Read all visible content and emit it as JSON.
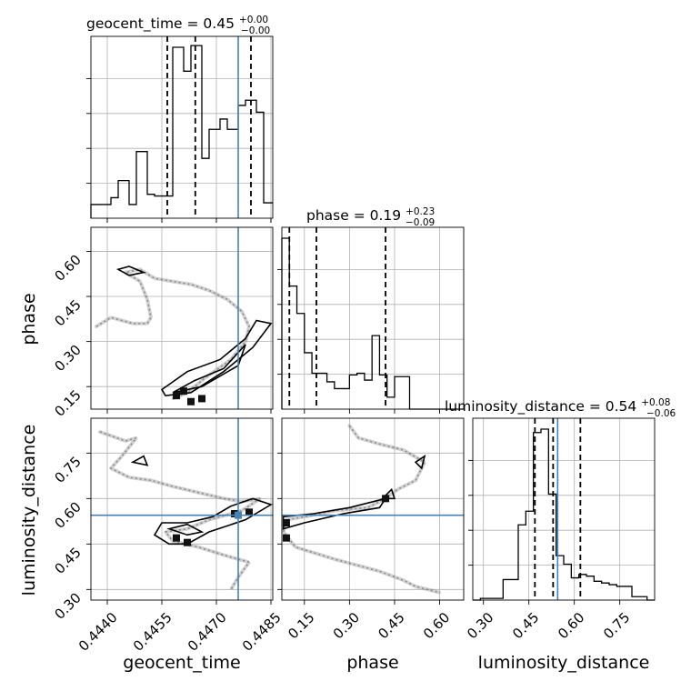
{
  "chart_data": {
    "type": "corner",
    "parameters": [
      "geocent_time",
      "phase",
      "luminosity_distance"
    ],
    "truths": {
      "geocent_time": 0.4476,
      "phase": null,
      "luminosity_distance": 0.545
    },
    "titles": [
      {
        "param": "geocent_time",
        "main": "geocent_time = 0.45",
        "plus": "+0.00",
        "minus": "−0.00"
      },
      {
        "param": "phase",
        "main": "phase = 0.19",
        "plus": "+0.23",
        "minus": "−0.09"
      },
      {
        "param": "luminosity_distance",
        "main": "luminosity_distance = 0.54",
        "plus": "+0.08",
        "minus": "−0.06"
      }
    ],
    "axis_labels": {
      "x": [
        "geocent_time",
        "phase",
        "luminosity_distance"
      ],
      "y": [
        "phase",
        "luminosity_distance"
      ]
    },
    "ranges": {
      "geocent_time": [
        0.44355,
        0.44855
      ],
      "phase": [
        0.075,
        0.68
      ],
      "luminosity_distance": [
        0.265,
        0.865
      ]
    },
    "ticks": {
      "geocent_time": [
        "0.4440",
        "0.4455",
        "0.4470",
        "0.4485"
      ],
      "phase": [
        "0.15",
        "0.30",
        "0.45",
        "0.60"
      ],
      "luminosity_distance": [
        "0.30",
        "0.45",
        "0.60",
        "0.75"
      ]
    },
    "tick_values": {
      "geocent_time": [
        0.444,
        0.4455,
        0.447,
        0.4485
      ],
      "phase": [
        0.15,
        0.3,
        0.45,
        0.6
      ],
      "luminosity_distance": [
        0.3,
        0.45,
        0.6,
        0.75
      ]
    },
    "histograms": [
      {
        "param": "geocent_time",
        "quantiles": [
          0.44565,
          0.44642,
          0.44795
        ],
        "edges": [
          0.44355,
          0.4438,
          0.4441,
          0.4443,
          0.4446,
          0.4448,
          0.4451,
          0.4453,
          0.4456,
          0.4458,
          0.4461,
          0.4463,
          0.4466,
          0.4468,
          0.4471,
          0.4473,
          0.4476,
          0.4478,
          0.4481,
          0.4483,
          0.44855
        ],
        "counts": [
          0.08,
          0.08,
          0.12,
          0.22,
          0.08,
          0.39,
          0.14,
          0.13,
          0.13,
          1.0,
          0.86,
          1.01,
          0.35,
          0.52,
          0.58,
          0.52,
          0.66,
          0.69,
          0.62,
          0.09
        ]
      },
      {
        "param": "phase",
        "quantiles": [
          0.1,
          0.19,
          0.42
        ],
        "edges": [
          0.075,
          0.1,
          0.125,
          0.15,
          0.175,
          0.2,
          0.225,
          0.25,
          0.275,
          0.3,
          0.325,
          0.35,
          0.375,
          0.4,
          0.425,
          0.45,
          0.475,
          0.5,
          0.525,
          0.55,
          0.575,
          0.6,
          0.625,
          0.65,
          0.68
        ],
        "counts": [
          1.0,
          0.72,
          0.56,
          0.33,
          0.21,
          0.21,
          0.16,
          0.12,
          0.12,
          0.2,
          0.21,
          0.17,
          0.43,
          0.2,
          0.07,
          0.19,
          0.19,
          0.0,
          0.0,
          0.0,
          0.0,
          0.0,
          0.0,
          0.0
        ]
      },
      {
        "param": "luminosity_distance",
        "quantiles": [
          0.47,
          0.53,
          0.62
        ],
        "edges": [
          0.265,
          0.29,
          0.315,
          0.34,
          0.365,
          0.39,
          0.415,
          0.44,
          0.465,
          0.49,
          0.515,
          0.54,
          0.565,
          0.59,
          0.615,
          0.64,
          0.665,
          0.69,
          0.715,
          0.74,
          0.765,
          0.79,
          0.815,
          0.84,
          0.865
        ],
        "counts": [
          0.0,
          0.01,
          0.01,
          0.01,
          0.12,
          0.12,
          0.44,
          0.52,
          0.98,
          1.0,
          0.62,
          0.26,
          0.21,
          0.13,
          0.15,
          0.14,
          0.11,
          0.1,
          0.09,
          0.08,
          0.08,
          0.02,
          0.02,
          0.0
        ]
      }
    ],
    "pairs": [
      {
        "x": "geocent_time",
        "y": "phase",
        "trace": [
          [
            0.4437,
            0.35
          ],
          [
            0.4441,
            0.38
          ],
          [
            0.4444,
            0.37
          ],
          [
            0.4447,
            0.36
          ],
          [
            0.4451,
            0.36
          ],
          [
            0.4452,
            0.38
          ],
          [
            0.4451,
            0.44
          ],
          [
            0.4449,
            0.5
          ],
          [
            0.4445,
            0.53
          ],
          [
            0.4449,
            0.54
          ],
          [
            0.4453,
            0.51
          ],
          [
            0.4458,
            0.5
          ],
          [
            0.4463,
            0.49
          ],
          [
            0.4468,
            0.47
          ],
          [
            0.4473,
            0.44
          ],
          [
            0.4477,
            0.4
          ],
          [
            0.4479,
            0.35
          ],
          [
            0.4478,
            0.3
          ],
          [
            0.4474,
            0.24
          ],
          [
            0.4467,
            0.18
          ],
          [
            0.4462,
            0.13
          ],
          [
            0.4458,
            0.11
          ]
        ],
        "contours": [
          [
            [
              0.4443,
              0.54
            ],
            [
              0.4446,
              0.55
            ],
            [
              0.445,
              0.53
            ],
            [
              0.4446,
              0.52
            ],
            [
              0.4443,
              0.54
            ]
          ],
          [
            [
              0.4455,
              0.14
            ],
            [
              0.4462,
              0.2
            ],
            [
              0.4471,
              0.24
            ],
            [
              0.4478,
              0.31
            ],
            [
              0.4481,
              0.37
            ],
            [
              0.4485,
              0.36
            ],
            [
              0.448,
              0.28
            ],
            [
              0.4472,
              0.2
            ],
            [
              0.4463,
              0.13
            ],
            [
              0.4456,
              0.12
            ],
            [
              0.4455,
              0.14
            ]
          ],
          [
            [
              0.4458,
              0.13
            ],
            [
              0.4464,
              0.17
            ],
            [
              0.4472,
              0.21
            ],
            [
              0.4478,
              0.29
            ],
            [
              0.4476,
              0.22
            ],
            [
              0.4466,
              0.15
            ],
            [
              0.4458,
              0.13
            ]
          ]
        ],
        "dense": [
          [
            0.4459,
            0.12
          ],
          [
            0.4463,
            0.1
          ],
          [
            0.4466,
            0.11
          ],
          [
            0.4461,
            0.135
          ]
        ]
      },
      {
        "x": "geocent_time",
        "y": "luminosity_distance",
        "trace": [
          [
            0.4438,
            0.82
          ],
          [
            0.4445,
            0.79
          ],
          [
            0.4448,
            0.8
          ],
          [
            0.4444,
            0.74
          ],
          [
            0.4441,
            0.7
          ],
          [
            0.4446,
            0.67
          ],
          [
            0.4452,
            0.66
          ],
          [
            0.4458,
            0.64
          ],
          [
            0.4465,
            0.62
          ],
          [
            0.4472,
            0.6
          ],
          [
            0.4477,
            0.59
          ],
          [
            0.4482,
            0.6
          ],
          [
            0.4477,
            0.56
          ],
          [
            0.4468,
            0.53
          ],
          [
            0.4462,
            0.5
          ],
          [
            0.4456,
            0.49
          ],
          [
            0.4458,
            0.46
          ],
          [
            0.4465,
            0.44
          ],
          [
            0.4473,
            0.41
          ],
          [
            0.4479,
            0.39
          ],
          [
            0.4476,
            0.34
          ],
          [
            0.4474,
            0.3
          ]
        ],
        "contours": [
          [
            [
              0.4447,
              0.72
            ],
            [
              0.445,
              0.74
            ],
            [
              0.4451,
              0.71
            ],
            [
              0.4447,
              0.72
            ]
          ],
          [
            [
              0.4455,
              0.52
            ],
            [
              0.4462,
              0.52
            ],
            [
              0.4469,
              0.54
            ],
            [
              0.4474,
              0.575
            ],
            [
              0.448,
              0.6
            ],
            [
              0.4485,
              0.58
            ],
            [
              0.4478,
              0.53
            ],
            [
              0.4468,
              0.49
            ],
            [
              0.4462,
              0.45
            ],
            [
              0.4457,
              0.45
            ],
            [
              0.4453,
              0.48
            ],
            [
              0.4455,
              0.52
            ]
          ],
          [
            [
              0.4457,
              0.5
            ],
            [
              0.4462,
              0.48
            ],
            [
              0.4466,
              0.49
            ],
            [
              0.4462,
              0.515
            ],
            [
              0.4457,
              0.5
            ]
          ]
        ],
        "dense": [
          [
            0.4459,
            0.47
          ],
          [
            0.4462,
            0.455
          ],
          [
            0.4475,
            0.55
          ],
          [
            0.4479,
            0.555
          ]
        ]
      },
      {
        "x": "phase",
        "y": "luminosity_distance",
        "trace": [
          [
            0.3,
            0.84
          ],
          [
            0.33,
            0.8
          ],
          [
            0.4,
            0.78
          ],
          [
            0.48,
            0.76
          ],
          [
            0.55,
            0.72
          ],
          [
            0.52,
            0.66
          ],
          [
            0.46,
            0.63
          ],
          [
            0.42,
            0.6
          ],
          [
            0.36,
            0.57
          ],
          [
            0.25,
            0.56
          ],
          [
            0.15,
            0.54
          ],
          [
            0.09,
            0.53
          ],
          [
            0.08,
            0.49
          ],
          [
            0.12,
            0.44
          ],
          [
            0.25,
            0.4
          ],
          [
            0.4,
            0.36
          ],
          [
            0.48,
            0.33
          ],
          [
            0.52,
            0.31
          ],
          [
            0.6,
            0.29
          ]
        ],
        "contours": [
          [
            [
              0.08,
              0.54
            ],
            [
              0.18,
              0.55
            ],
            [
              0.3,
              0.57
            ],
            [
              0.42,
              0.6
            ],
            [
              0.4,
              0.57
            ],
            [
              0.28,
              0.55
            ],
            [
              0.15,
              0.52
            ],
            [
              0.08,
              0.5
            ],
            [
              0.08,
              0.54
            ]
          ],
          [
            [
              0.52,
              0.72
            ],
            [
              0.55,
              0.74
            ],
            [
              0.54,
              0.7
            ],
            [
              0.52,
              0.72
            ]
          ],
          [
            [
              0.41,
              0.6
            ],
            [
              0.44,
              0.63
            ],
            [
              0.45,
              0.6
            ],
            [
              0.41,
              0.6
            ]
          ]
        ],
        "dense": [
          [
            0.09,
            0.52
          ],
          [
            0.09,
            0.47
          ],
          [
            0.42,
            0.6
          ]
        ]
      }
    ]
  }
}
